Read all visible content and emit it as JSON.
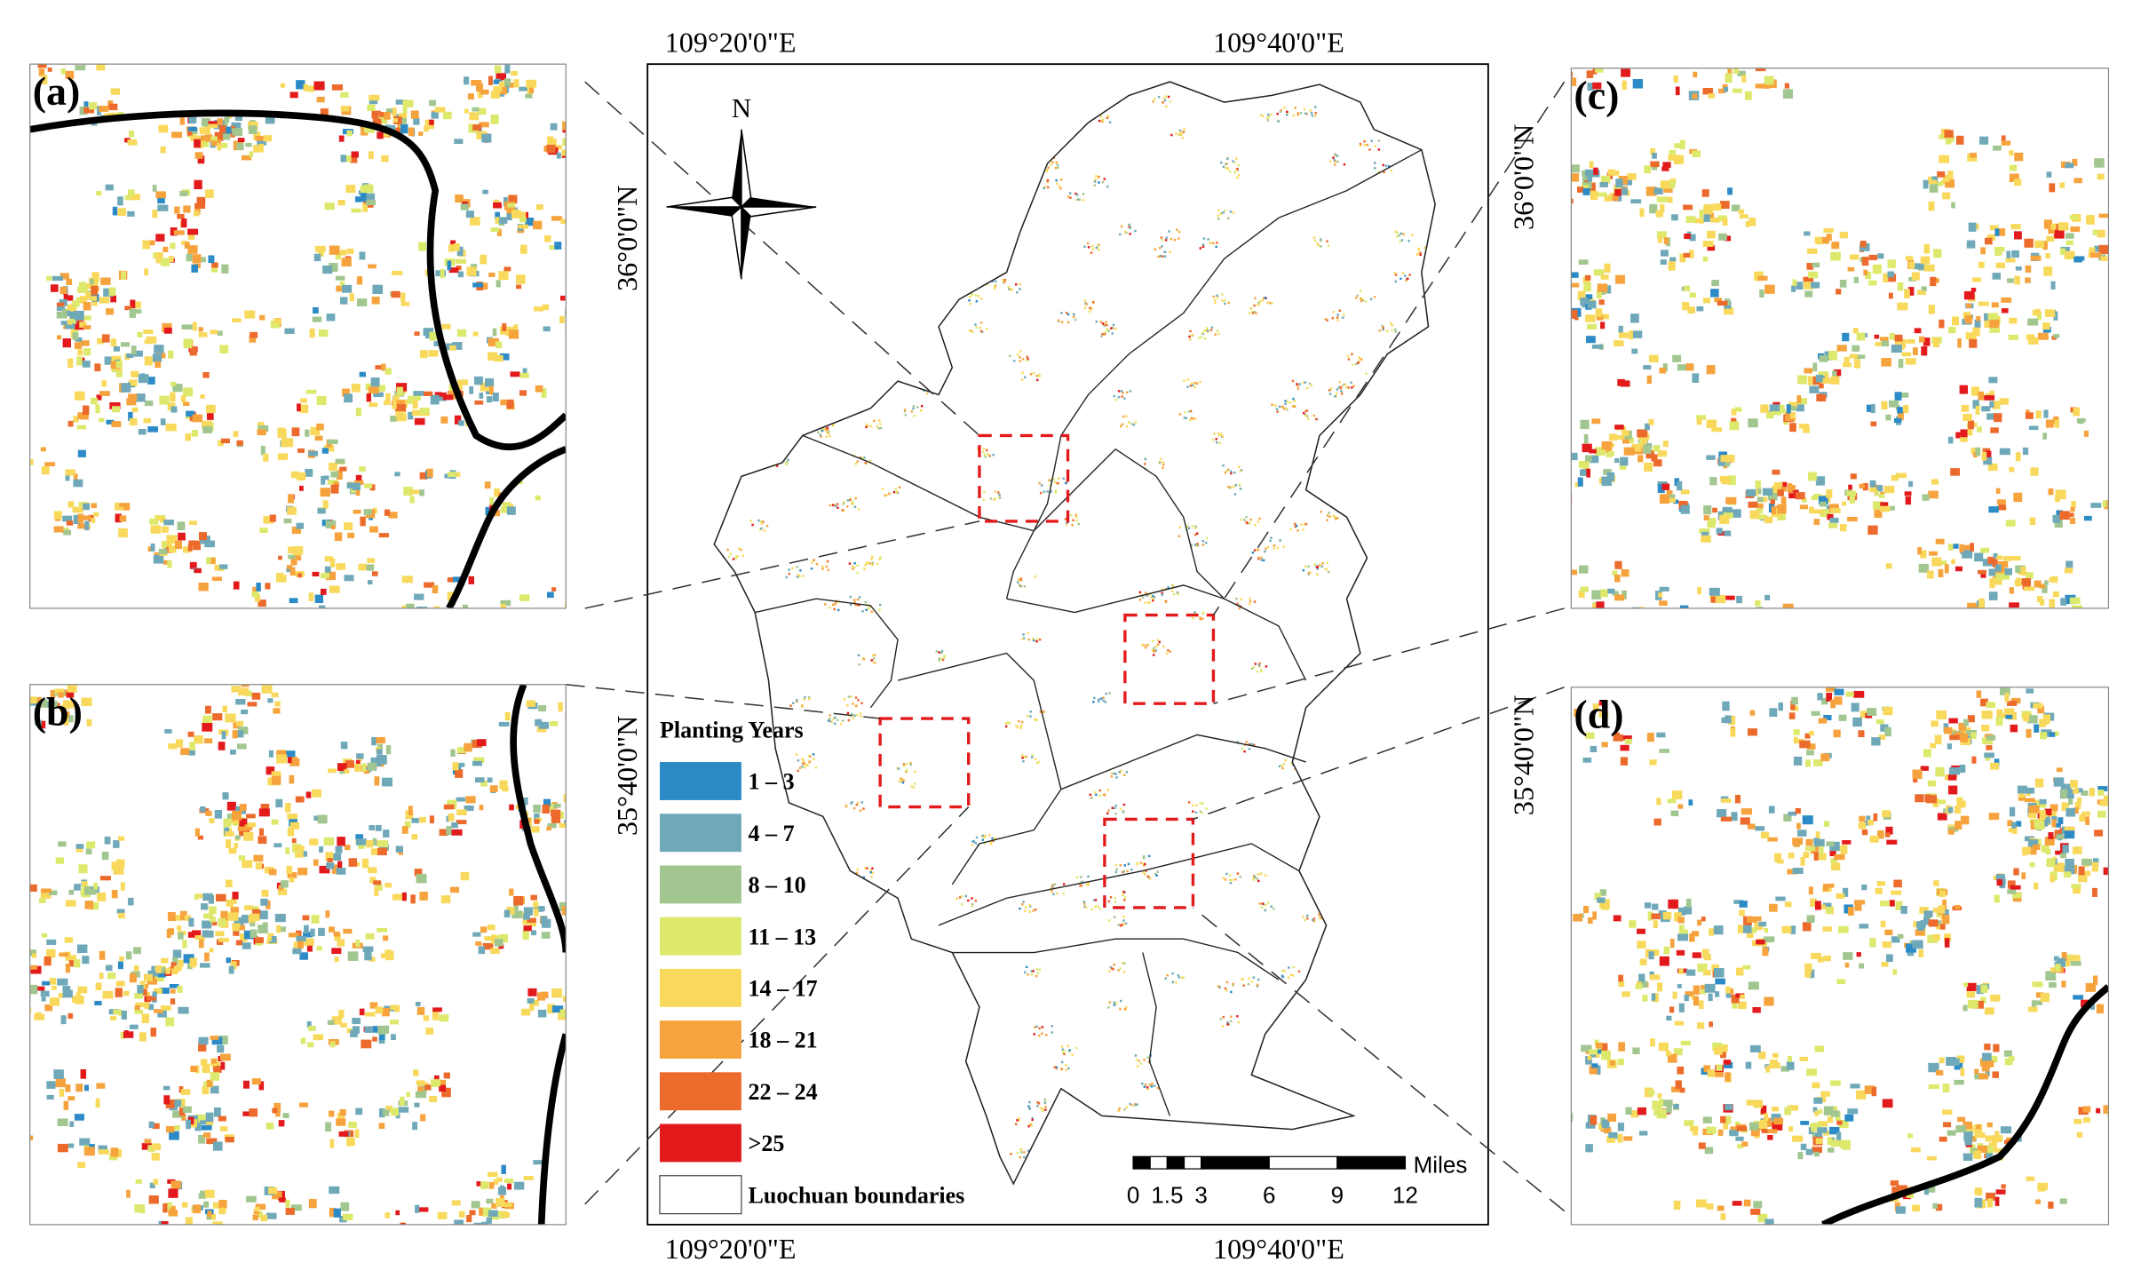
{
  "coordinates": {
    "lon": [
      "109°20'0\"E",
      "109°40'0\"E"
    ],
    "lat": [
      "36°0'0\"N",
      "35°40'0\"N"
    ]
  },
  "north_label": "N",
  "panels": [
    "(a)",
    "(b)",
    "(c)",
    "(d)"
  ],
  "legend": {
    "title": "Planting Years",
    "items": [
      {
        "label": "1 – 3",
        "color": "#2c8bc6"
      },
      {
        "label": "4 – 7",
        "color": "#6fa9b9"
      },
      {
        "label": "8 – 10",
        "color": "#a2c690"
      },
      {
        "label": "11 – 13",
        "color": "#dde96c"
      },
      {
        "label": "14 – 17",
        "color": "#f8d95b"
      },
      {
        "label": "18 – 21",
        "color": "#f6a33d"
      },
      {
        "label": "22 – 24",
        "color": "#ec6a2b"
      },
      {
        "label": ">25",
        "color": "#e31a1c"
      }
    ],
    "boundary_label": "Luochuan boundaries"
  },
  "scale_bar": {
    "unit": "Miles",
    "ticks": [
      0,
      1.5,
      3,
      6,
      9,
      12
    ]
  }
}
